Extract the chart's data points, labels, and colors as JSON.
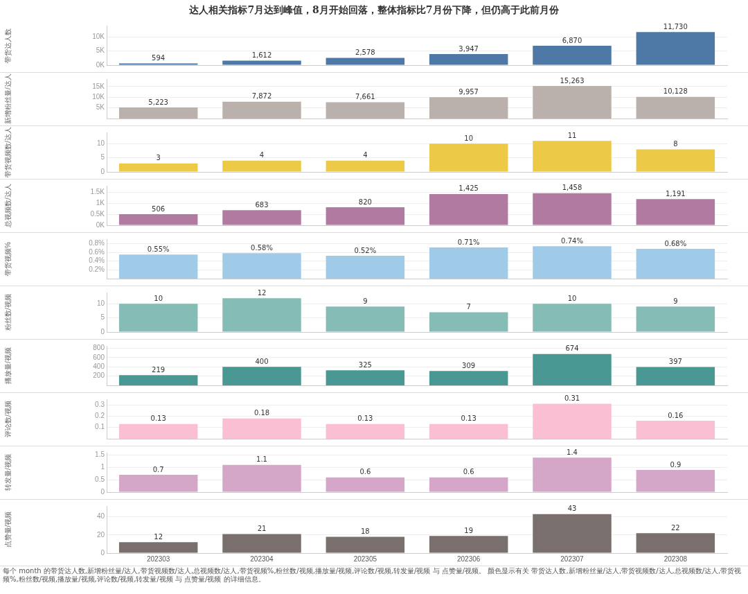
{
  "chart_data": [
    {
      "type": "bar",
      "title": "达人相关指标7月达到峰值，8月开始回落，整体指标比7月份下降，但仍高于此前月份",
      "ylabel": "带货达人数",
      "categories": [
        "202303",
        "202304",
        "202305",
        "202306",
        "202307",
        "202308"
      ],
      "values": [
        594,
        1612,
        2578,
        3947,
        6870,
        11730
      ],
      "value_labels": [
        "594",
        "1,612",
        "2,578",
        "3,947",
        "6,870",
        "11,730"
      ],
      "color": "#4e79a7",
      "ylim": [
        0,
        14000
      ],
      "yticks": [
        {
          "value": 0,
          "label": "0K"
        },
        {
          "value": 5000,
          "label": "5K"
        },
        {
          "value": 10000,
          "label": "10K"
        }
      ],
      "grid": "y",
      "tick_labels": "y"
    },
    {
      "type": "bar",
      "ylabel": "新增粉丝量/达人",
      "categories": [
        "202303",
        "202304",
        "202305",
        "202306",
        "202307",
        "202308"
      ],
      "values": [
        5223,
        7872,
        7661,
        9957,
        15263,
        10128
      ],
      "value_labels": [
        "5,223",
        "7,872",
        "7,661",
        "9,957",
        "15,263",
        "10,128"
      ],
      "color": "#bab0ac",
      "ylim": [
        0,
        18500
      ],
      "yticks": [
        {
          "value": 5000,
          "label": "5K"
        },
        {
          "value": 10000,
          "label": "10K"
        },
        {
          "value": 15000,
          "label": "15K"
        }
      ],
      "grid": "y",
      "tick_labels": "y"
    },
    {
      "type": "bar",
      "ylabel": "带货视频数/达人",
      "categories": [
        "202303",
        "202304",
        "202305",
        "202306",
        "202307",
        "202308"
      ],
      "values": [
        3,
        4,
        4,
        10,
        11,
        8
      ],
      "value_labels": [
        "3",
        "4",
        "4",
        "10",
        "11",
        "8"
      ],
      "color": "#edc948",
      "ylim": [
        0,
        14
      ],
      "yticks": [
        0,
        5,
        10
      ],
      "grid": "y",
      "tick_labels": "y"
    },
    {
      "type": "bar",
      "ylabel": "总视频数/达人",
      "categories": [
        "202303",
        "202304",
        "202305",
        "202306",
        "202307",
        "202308"
      ],
      "values": [
        506,
        683,
        820,
        1425,
        1458,
        1191
      ],
      "value_labels": [
        "506",
        "683",
        "820",
        "1,425",
        "1,458",
        "1,191"
      ],
      "color": "#b07aa1",
      "ylim": [
        0,
        1800
      ],
      "yticks": [
        {
          "value": 0,
          "label": "0K"
        },
        {
          "value": 500,
          "label": "0.5K"
        },
        {
          "value": 1000,
          "label": "1K"
        },
        {
          "value": 1500,
          "label": "1.5K"
        }
      ],
      "grid": "y",
      "tick_labels": "y"
    },
    {
      "type": "bar",
      "ylabel": "带货视频%",
      "categories": [
        "202303",
        "202304",
        "202305",
        "202306",
        "202307",
        "202308"
      ],
      "values": [
        0.55,
        0.58,
        0.52,
        0.71,
        0.74,
        0.68
      ],
      "value_labels": [
        "0.55%",
        "0.58%",
        "0.52%",
        "0.71%",
        "0.74%",
        "0.68%"
      ],
      "color": "#a0cbe8",
      "ylim": [
        0,
        0.9
      ],
      "yticks": [
        {
          "value": 0.2,
          "label": "0.2%"
        },
        {
          "value": 0.4,
          "label": "0.4%"
        },
        {
          "value": 0.6,
          "label": "0.6%"
        },
        {
          "value": 0.8,
          "label": "0.8%"
        }
      ],
      "grid": "y",
      "tick_labels": "y"
    },
    {
      "type": "bar",
      "ylabel": "粉丝数/视频",
      "categories": [
        "202303",
        "202304",
        "202305",
        "202306",
        "202307",
        "202308"
      ],
      "values": [
        10,
        12,
        9,
        7,
        10,
        9
      ],
      "value_labels": [
        "10",
        "12",
        "9",
        "7",
        "10",
        "9"
      ],
      "color": "#86bcb6",
      "ylim": [
        0,
        14
      ],
      "yticks": [
        0,
        5,
        10
      ],
      "grid": "y",
      "tick_labels": "y"
    },
    {
      "type": "bar",
      "ylabel": "播放量/视频",
      "categories": [
        "202303",
        "202304",
        "202305",
        "202306",
        "202307",
        "202308"
      ],
      "values": [
        219,
        400,
        325,
        309,
        674,
        397
      ],
      "value_labels": [
        "219",
        "400",
        "325",
        "309",
        "674",
        "397"
      ],
      "color": "#499894",
      "ylim": [
        0,
        850
      ],
      "yticks": [
        200,
        400,
        600,
        800
      ],
      "grid": "y",
      "tick_labels": "y"
    },
    {
      "type": "bar",
      "ylabel": "评论数/视频",
      "categories": [
        "202303",
        "202304",
        "202305",
        "202306",
        "202307",
        "202308"
      ],
      "values": [
        0.13,
        0.18,
        0.13,
        0.13,
        0.31,
        0.16
      ],
      "value_labels": [
        "0.13",
        "0.18",
        "0.13",
        "0.13",
        "0.31",
        "0.16"
      ],
      "color": "#fabfd2",
      "ylim": [
        0,
        0.35
      ],
      "yticks": [
        0.1,
        0.2,
        0.3
      ],
      "grid": "y",
      "tick_labels": "y"
    },
    {
      "type": "bar",
      "ylabel": "转发量/视频",
      "categories": [
        "202303",
        "202304",
        "202305",
        "202306",
        "202307",
        "202308"
      ],
      "values": [
        0.7,
        1.1,
        0.6,
        0.6,
        1.4,
        0.9
      ],
      "value_labels": [
        "0.7",
        "1.1",
        "0.6",
        "0.6",
        "1.4",
        "0.9"
      ],
      "color": "#d4a6c8",
      "ylim": [
        0,
        1.6
      ],
      "yticks": [
        0,
        0.5,
        1,
        1.5
      ],
      "grid": "y",
      "tick_labels": "y"
    },
    {
      "type": "bar",
      "ylabel": "点赞量/视频",
      "categories": [
        "202303",
        "202304",
        "202305",
        "202306",
        "202307",
        "202308"
      ],
      "values": [
        12,
        21,
        18,
        19,
        43,
        22
      ],
      "value_labels": [
        "12",
        "21",
        "18",
        "19",
        "43",
        "22"
      ],
      "color": "#79706e",
      "ylim": [
        0,
        52
      ],
      "yticks": [
        0,
        20,
        40
      ],
      "grid": "y",
      "annotations": [
        "每个 month 的带货达人数,新增粉丝量/达人,带货视频数/达人,总视频数/达人,带货视频%,粉丝数/视频,播放量/视频,评论数/视频,转发量/视频 与 点赞量/视频。 颜色显示有关 带货达人数,新增粉丝量/达人,带货视频数/达人,总视频数/达人,带货视频%,粉丝数/视频,播放量/视频,评论数/视频,转发量/视频 与 点赞量/视频 的详细信息。"
      ]
    }
  ]
}
